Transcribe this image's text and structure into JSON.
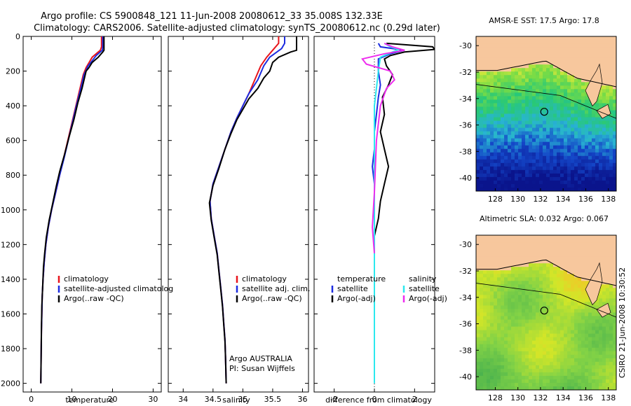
{
  "header": {
    "line1": "Argo profile: CS 5900848_121 11-Jun-2008 20080612_33 35.008S 132.33E",
    "line2": "Climatology: CARS2006. Satellite-adjusted climatology: synTS_20080612.nc (0.29d later)"
  },
  "side_label": "CSIRO 21-Jun-2008 10:30:52",
  "colors": {
    "red": "#e8141c",
    "blue": "#1c2ce0",
    "black": "#000000",
    "cyan": "#2ce8ee",
    "magenta": "#ee2cee",
    "land": "#f7c79d"
  },
  "chart_data": [
    {
      "type": "line",
      "title": "",
      "xlabel": "temperature",
      "ylabel": "",
      "xlim": [
        -2,
        32
      ],
      "ylim": [
        2050,
        0
      ],
      "xticks": [
        0,
        10,
        20,
        30
      ],
      "yticks": [
        0,
        200,
        400,
        600,
        800,
        1000,
        1200,
        1400,
        1600,
        1800,
        2000
      ],
      "series": [
        {
          "name": "climatology",
          "color": "#e8141c",
          "points": [
            [
              17.3,
              0
            ],
            [
              17.3,
              60
            ],
            [
              17.0,
              80
            ],
            [
              15.0,
              120
            ],
            [
              13.5,
              180
            ],
            [
              12.8,
              220
            ],
            [
              12.0,
              300
            ],
            [
              11.0,
              400
            ],
            [
              10.0,
              500
            ],
            [
              9.0,
              600
            ],
            [
              8.0,
              700
            ],
            [
              7.0,
              800
            ],
            [
              6.0,
              900
            ],
            [
              5.0,
              1000
            ],
            [
              4.2,
              1100
            ],
            [
              3.6,
              1200
            ],
            [
              3.2,
              1300
            ],
            [
              2.9,
              1400
            ],
            [
              2.7,
              1500
            ],
            [
              2.6,
              1600
            ],
            [
              2.5,
              1700
            ],
            [
              2.45,
              1800
            ],
            [
              2.4,
              1900
            ],
            [
              2.35,
              2000
            ]
          ]
        },
        {
          "name": "satellite-adjusted climatology",
          "color": "#1c2ce0",
          "points": [
            [
              17.6,
              0
            ],
            [
              17.6,
              60
            ],
            [
              17.5,
              80
            ],
            [
              16.0,
              110
            ],
            [
              14.0,
              170
            ],
            [
              13.0,
              220
            ],
            [
              12.2,
              300
            ],
            [
              11.1,
              400
            ],
            [
              10.1,
              500
            ],
            [
              9.1,
              600
            ],
            [
              8.1,
              700
            ],
            [
              7.0,
              800
            ],
            [
              6.0,
              900
            ],
            [
              5.0,
              1000
            ],
            [
              4.2,
              1100
            ],
            [
              3.6,
              1200
            ],
            [
              3.2,
              1300
            ],
            [
              2.9,
              1400
            ],
            [
              2.7,
              1500
            ],
            [
              2.6,
              1600
            ],
            [
              2.5,
              1700
            ],
            [
              2.45,
              1800
            ],
            [
              2.4,
              1900
            ],
            [
              2.35,
              2000
            ]
          ]
        },
        {
          "name": "Argo(..raw -QC)",
          "color": "#000000",
          "points": [
            [
              17.9,
              0
            ],
            [
              17.9,
              80
            ],
            [
              17.6,
              90
            ],
            [
              16.5,
              120
            ],
            [
              15.0,
              150
            ],
            [
              14.2,
              180
            ],
            [
              13.5,
              200
            ],
            [
              13.0,
              250
            ],
            [
              12.5,
              300
            ],
            [
              11.5,
              380
            ],
            [
              10.5,
              480
            ],
            [
              9.3,
              580
            ],
            [
              8.2,
              680
            ],
            [
              7.0,
              780
            ],
            [
              6.2,
              860
            ],
            [
              5.3,
              960
            ],
            [
              4.4,
              1060
            ],
            [
              3.7,
              1160
            ],
            [
              3.3,
              1250
            ],
            [
              3.0,
              1330
            ],
            [
              2.8,
              1450
            ],
            [
              2.6,
              1550
            ],
            [
              2.5,
              1680
            ],
            [
              2.45,
              1800
            ],
            [
              2.4,
              1900
            ],
            [
              2.35,
              2000
            ]
          ]
        }
      ],
      "legend": [
        "climatology",
        "satellite-adjusted climatolog",
        "Argo(..raw -QC)"
      ]
    },
    {
      "type": "line",
      "title": "",
      "xlabel": "salinity",
      "ylabel": "",
      "xlim": [
        33.75,
        36.1
      ],
      "ylim": [
        2050,
        0
      ],
      "xticks": [
        34,
        34.5,
        35,
        35.5,
        36
      ],
      "yticks": [
        0,
        200,
        400,
        600,
        800,
        1000,
        1200,
        1400,
        1600,
        1800,
        2000
      ],
      "series": [
        {
          "name": "climatology",
          "color": "#e8141c",
          "points": [
            [
              35.6,
              0
            ],
            [
              35.6,
              40
            ],
            [
              35.5,
              80
            ],
            [
              35.4,
              120
            ],
            [
              35.3,
              170
            ],
            [
              35.2,
              250
            ],
            [
              35.1,
              330
            ],
            [
              35.0,
              400
            ],
            [
              34.9,
              470
            ],
            [
              34.8,
              550
            ],
            [
              34.7,
              650
            ],
            [
              34.6,
              750
            ],
            [
              34.5,
              850
            ],
            [
              34.45,
              950
            ],
            [
              34.47,
              1050
            ],
            [
              34.52,
              1150
            ],
            [
              34.57,
              1250
            ],
            [
              34.6,
              1350
            ],
            [
              34.63,
              1450
            ],
            [
              34.66,
              1550
            ],
            [
              34.68,
              1650
            ],
            [
              34.7,
              1750
            ],
            [
              34.71,
              1850
            ],
            [
              34.72,
              2000
            ]
          ]
        },
        {
          "name": "satellite adj. clim.",
          "color": "#1c2ce0",
          "points": [
            [
              35.7,
              0
            ],
            [
              35.7,
              40
            ],
            [
              35.65,
              70
            ],
            [
              35.45,
              120
            ],
            [
              35.35,
              170
            ],
            [
              35.25,
              250
            ],
            [
              35.1,
              330
            ],
            [
              35.0,
              400
            ],
            [
              34.9,
              470
            ],
            [
              34.8,
              550
            ],
            [
              34.7,
              650
            ],
            [
              34.6,
              750
            ],
            [
              34.5,
              850
            ],
            [
              34.45,
              950
            ],
            [
              34.47,
              1050
            ],
            [
              34.52,
              1150
            ],
            [
              34.57,
              1250
            ],
            [
              34.6,
              1350
            ],
            [
              34.63,
              1450
            ],
            [
              34.66,
              1550
            ],
            [
              34.68,
              1650
            ],
            [
              34.7,
              1750
            ],
            [
              34.71,
              1850
            ],
            [
              34.72,
              2000
            ]
          ]
        },
        {
          "name": "Argo(..raw -QC)",
          "color": "#000000",
          "points": [
            [
              35.9,
              0
            ],
            [
              35.9,
              80
            ],
            [
              35.8,
              90
            ],
            [
              35.6,
              120
            ],
            [
              35.5,
              150
            ],
            [
              35.45,
              200
            ],
            [
              35.35,
              240
            ],
            [
              35.25,
              300
            ],
            [
              35.1,
              360
            ],
            [
              35.0,
              420
            ],
            [
              34.9,
              480
            ],
            [
              34.8,
              560
            ],
            [
              34.7,
              650
            ],
            [
              34.6,
              760
            ],
            [
              34.5,
              860
            ],
            [
              34.44,
              960
            ],
            [
              34.47,
              1060
            ],
            [
              34.52,
              1160
            ],
            [
              34.57,
              1260
            ],
            [
              34.6,
              1360
            ],
            [
              34.63,
              1460
            ],
            [
              34.66,
              1560
            ],
            [
              34.68,
              1660
            ],
            [
              34.7,
              1760
            ],
            [
              34.71,
              1860
            ],
            [
              34.72,
              2000
            ]
          ]
        }
      ],
      "legend": [
        "climatology",
        "satellite adj. clim.",
        "Argo(..raw -QC)"
      ],
      "annotation": [
        "Argo AUSTRALIA",
        "PI: Susan Wijffels"
      ]
    },
    {
      "type": "line",
      "title": "",
      "xlabel": "difference from climatology",
      "ylabel": "",
      "xlim": [
        -3,
        3
      ],
      "ylim": [
        2050,
        0
      ],
      "xticks": [
        -2,
        0,
        2
      ],
      "yticks": [
        0,
        200,
        400,
        600,
        800,
        1000,
        1200,
        1400,
        1600,
        1800,
        2000
      ],
      "series": [
        {
          "name": "temperature satellite",
          "color": "#1c2ce0",
          "points": [
            [
              0.2,
              40
            ],
            [
              0.3,
              60
            ],
            [
              1.5,
              80
            ],
            [
              0.8,
              100
            ],
            [
              0.2,
              130
            ],
            [
              0.2,
              200
            ],
            [
              0.3,
              280
            ],
            [
              0.2,
              350
            ],
            [
              0.1,
              450
            ],
            [
              0.0,
              550
            ],
            [
              0.0,
              650
            ],
            [
              -0.1,
              750
            ],
            [
              0.0,
              850
            ],
            [
              0.0,
              950
            ],
            [
              0.0,
              1050
            ],
            [
              0.0,
              1200
            ]
          ]
        },
        {
          "name": "temperature Argo(-adj)",
          "color": "#000000",
          "points": [
            [
              0.6,
              40
            ],
            [
              2.9,
              60
            ],
            [
              3.0,
              75
            ],
            [
              1.5,
              90
            ],
            [
              0.8,
              110
            ],
            [
              0.5,
              130
            ],
            [
              0.6,
              170
            ],
            [
              0.9,
              220
            ],
            [
              0.7,
              280
            ],
            [
              0.4,
              350
            ],
            [
              0.5,
              450
            ],
            [
              0.3,
              550
            ],
            [
              0.5,
              650
            ],
            [
              0.7,
              750
            ],
            [
              0.5,
              850
            ],
            [
              0.3,
              950
            ],
            [
              0.2,
              1050
            ],
            [
              0.0,
              1150
            ],
            [
              0.0,
              1250
            ]
          ]
        },
        {
          "name": "salinity satellite",
          "color": "#2ce8ee",
          "points": [
            [
              0.5,
              40
            ],
            [
              0.8,
              60
            ],
            [
              1.2,
              75
            ],
            [
              0.9,
              90
            ],
            [
              0.3,
              120
            ],
            [
              0.2,
              200
            ],
            [
              0.1,
              300
            ],
            [
              0.0,
              400
            ],
            [
              0.0,
              600
            ],
            [
              0.0,
              900
            ],
            [
              0.0,
              1200
            ],
            [
              0.0,
              1500
            ],
            [
              0.0,
              2000
            ]
          ]
        },
        {
          "name": "salinity Argo(-adj)",
          "color": "#ee2cee",
          "points": [
            [
              0.5,
              40
            ],
            [
              0.9,
              60
            ],
            [
              1.5,
              80
            ],
            [
              0.5,
              100
            ],
            [
              -0.6,
              130
            ],
            [
              -0.4,
              160
            ],
            [
              0.8,
              200
            ],
            [
              1.0,
              250
            ],
            [
              0.6,
              300
            ],
            [
              0.3,
              400
            ],
            [
              0.1,
              600
            ],
            [
              0.0,
              900
            ],
            [
              -0.1,
              1100
            ],
            [
              0.0,
              1250
            ]
          ]
        }
      ],
      "legend_headers": [
        "temperature",
        "salinity"
      ],
      "legend": [
        "satellite",
        "Argo(-adj)",
        "satellite",
        "Argo(-adj)"
      ]
    },
    {
      "type": "heatmap",
      "title": "AMSR-E SST: 17.5 Argo: 17.8",
      "xticks": [
        128,
        130,
        132,
        134,
        136,
        138
      ],
      "yticks": [
        -30,
        -32,
        -34,
        -36,
        -38,
        -40
      ],
      "xlim": [
        126.3,
        138.7
      ],
      "ylim": [
        -41,
        -29.3
      ],
      "marker": {
        "lon": 132.33,
        "lat": -35.0
      }
    },
    {
      "type": "heatmap",
      "title": "Altimetric SLA: 0.032 Argo: 0.067",
      "xticks": [
        128,
        130,
        132,
        134,
        136,
        138
      ],
      "yticks": [
        -30,
        -32,
        -34,
        -36,
        -38,
        -40
      ],
      "xlim": [
        126.3,
        138.7
      ],
      "ylim": [
        -41,
        -29.3
      ],
      "marker": {
        "lon": 132.33,
        "lat": -35.0
      }
    }
  ]
}
